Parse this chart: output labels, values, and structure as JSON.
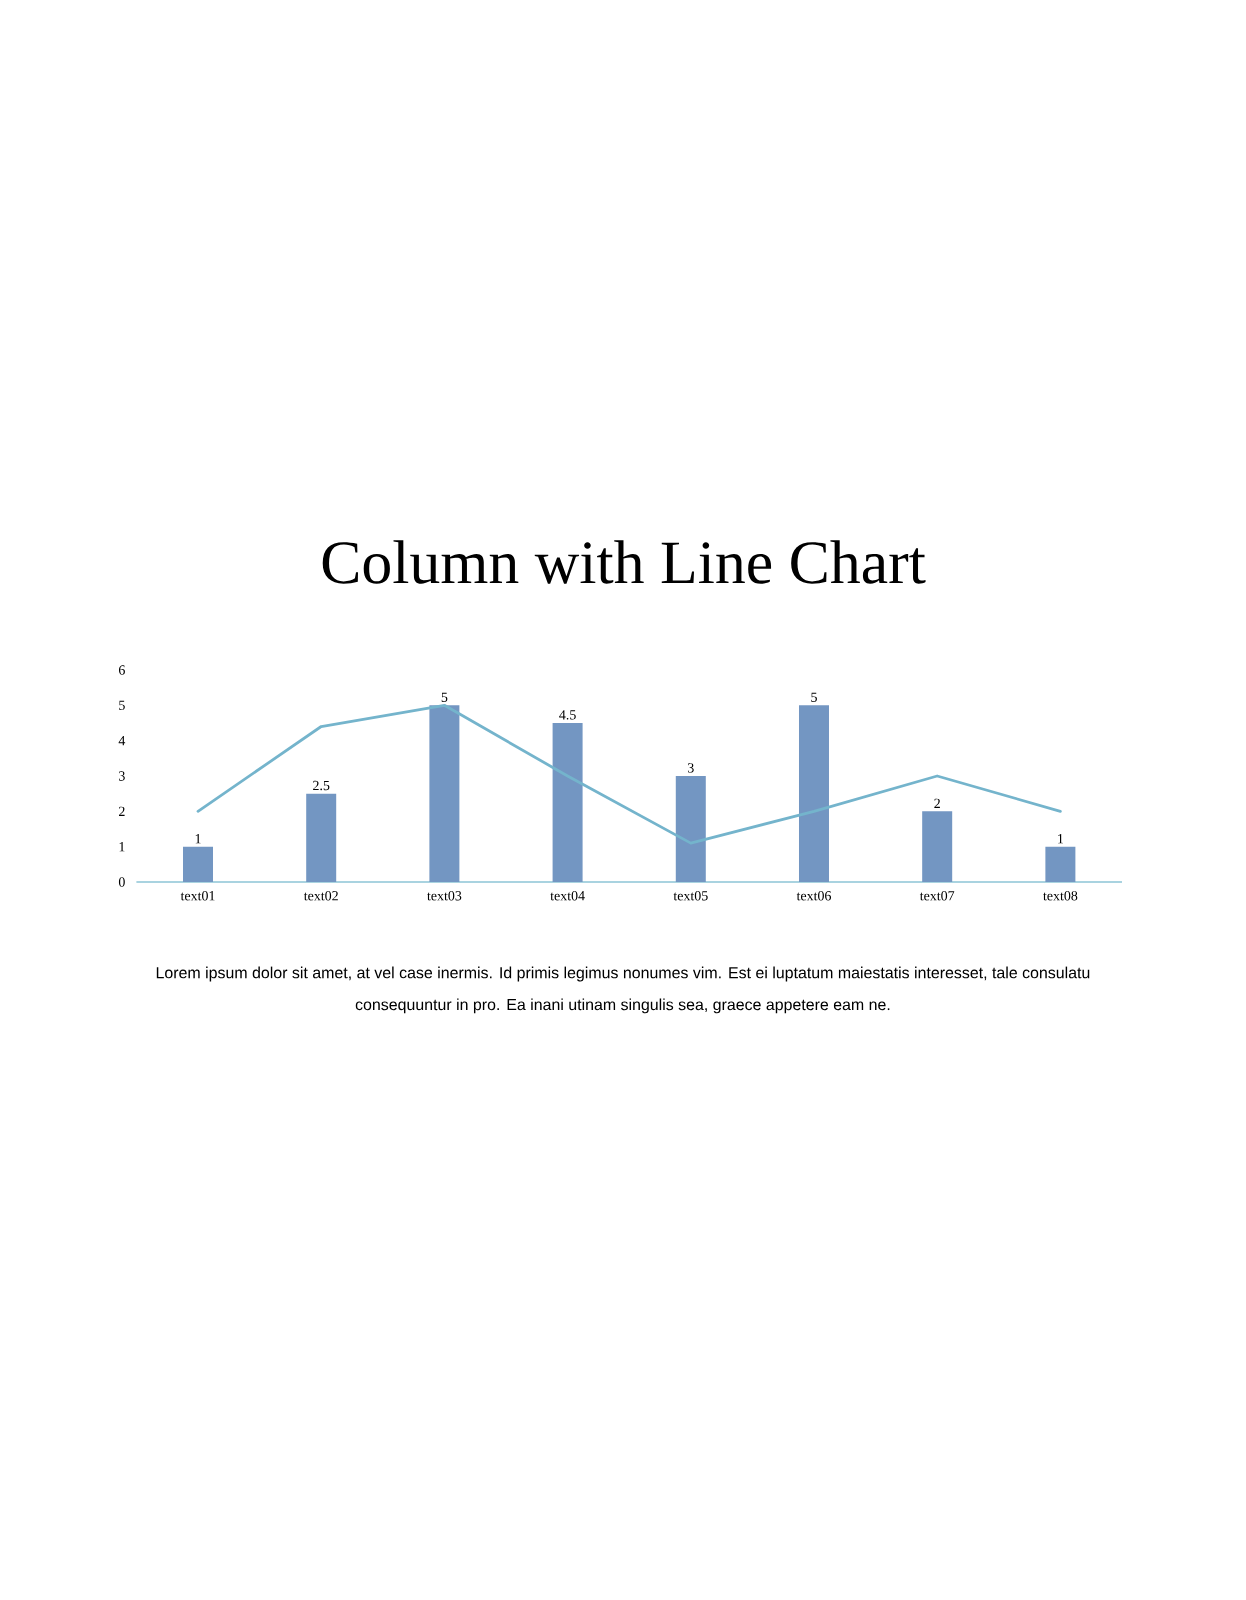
{
  "chart_data": {
    "type": "bar",
    "title": "Column with Line Chart",
    "categories": [
      "text01",
      "text02",
      "text03",
      "text04",
      "text05",
      "text06",
      "text07",
      "text08"
    ],
    "series": [
      {
        "color": "#7396c2",
        "values": [
          1,
          2.5,
          5,
          4.5,
          3,
          5,
          2,
          1
        ],
        "value_labels": [
          "1",
          "2.5",
          "5",
          "4.5",
          "3",
          "5",
          "2",
          "1"
        ]
      },
      {
        "type": "line",
        "color": "#74b4cc",
        "values": [
          2,
          4.4,
          5,
          3,
          1.1,
          2,
          3,
          2
        ],
        "marker": "none"
      }
    ],
    "ylim": [
      0,
      6
    ],
    "yticks": [
      0,
      1,
      2,
      3,
      4,
      5,
      6
    ],
    "annotations": [
      "Lorem ipsum dolor sit amet, at vel case inermis.  Id primis legimus nonumes vim. Est ei luptatum maiestatis interesset, tale consulatu consequuntur in pro. Ea inani utinam singulis sea, graece appetere eam ne."
    ]
  }
}
